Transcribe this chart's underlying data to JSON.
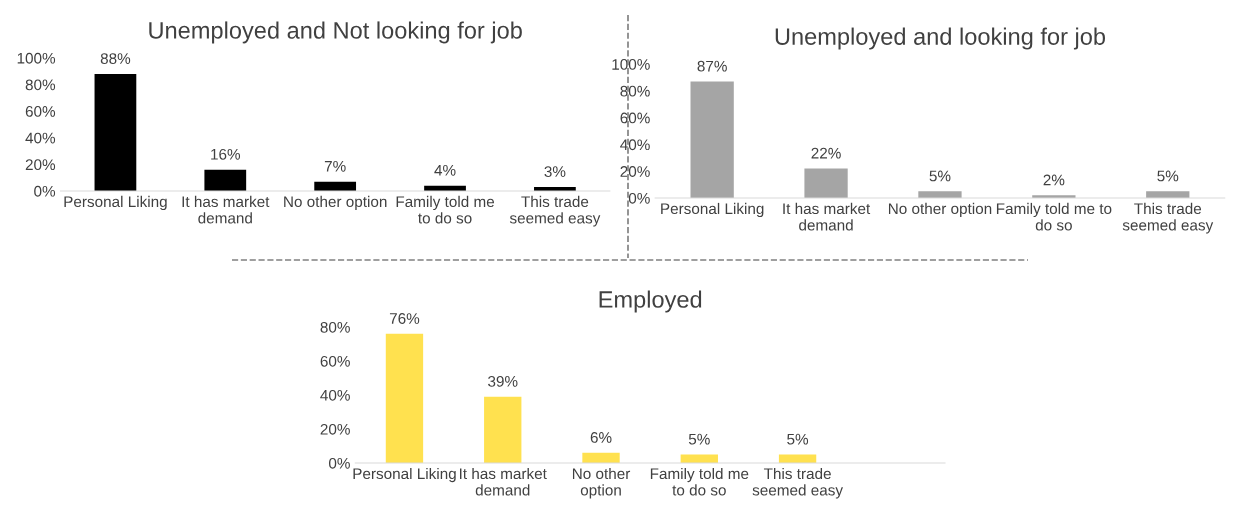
{
  "chart_data": [
    {
      "type": "bar",
      "title": "Unemployed and Not looking for job",
      "categories": [
        "Personal Liking",
        "It has market\ndemand",
        "No other option",
        "Family told me\nto do so",
        "This trade\nseemed easy"
      ],
      "values": [
        88,
        16,
        7,
        4,
        3
      ],
      "value_labels": [
        "88%",
        "16%",
        "7%",
        "4%",
        "3%"
      ],
      "color": "#000000",
      "ylim": [
        0,
        100
      ],
      "yticks": [
        {
          "value": 0,
          "label": "0%"
        },
        {
          "value": 20,
          "label": "20%"
        },
        {
          "value": 40,
          "label": "40%"
        },
        {
          "value": 60,
          "label": "60%"
        },
        {
          "value": 80,
          "label": "80%"
        },
        {
          "value": 100,
          "label": "100%"
        }
      ]
    },
    {
      "type": "bar",
      "title": "Unemployed and looking for job",
      "categories": [
        "Personal Liking",
        "It has market\ndemand",
        "No other option",
        "Family told me to\ndo so",
        "This trade\nseemed easy"
      ],
      "values": [
        87,
        22,
        5,
        2,
        5
      ],
      "value_labels": [
        "87%",
        "22%",
        "5%",
        "2%",
        "5%"
      ],
      "color": "#a5a5a5",
      "ylim": [
        0,
        100
      ],
      "yticks": [
        {
          "value": 0,
          "label": "0%"
        },
        {
          "value": 20,
          "label": "20%"
        },
        {
          "value": 40,
          "label": "40%"
        },
        {
          "value": 60,
          "label": "60%"
        },
        {
          "value": 80,
          "label": "80%"
        },
        {
          "value": 100,
          "label": "100%"
        }
      ]
    },
    {
      "type": "bar",
      "title": "Employed",
      "categories": [
        "Personal Liking",
        "It has market\ndemand",
        "No other\noption",
        "Family told me\nto do so",
        "This trade\nseemed easy",
        null
      ],
      "values": [
        76,
        39,
        6,
        5,
        5,
        null
      ],
      "value_labels": [
        "76%",
        "39%",
        "6%",
        "5%",
        "5%",
        null
      ],
      "color": "#ffe14f",
      "ylim": [
        0,
        80
      ],
      "yticks": [
        {
          "value": 0,
          "label": "0%"
        },
        {
          "value": 20,
          "label": "20%"
        },
        {
          "value": 40,
          "label": "40%"
        },
        {
          "value": 60,
          "label": "60%"
        },
        {
          "value": 80,
          "label": "80%"
        }
      ]
    }
  ]
}
